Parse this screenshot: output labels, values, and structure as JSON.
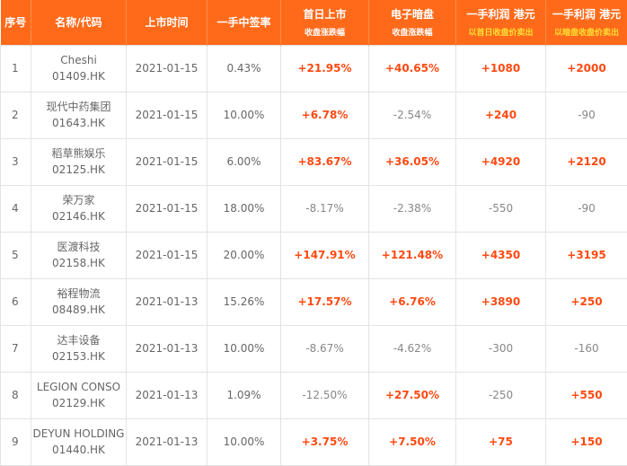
{
  "colors": {
    "header_bg": "#ff6a1a",
    "positive": "#ff4a12",
    "negative": "#888888",
    "subheader_yellow": "#ffe033"
  },
  "header": {
    "idx": "序号",
    "name": "名称/代码",
    "date": "上市时间",
    "rate": "一手中签率",
    "first_day": "首日上市",
    "first_day_sub": "收盘涨跌幅",
    "grey": "电子暗盘",
    "grey_sub": "收盘涨跌幅",
    "profit1": "一手利润 港元",
    "profit1_sub": "以首日收盘价卖出",
    "profit2": "一手利润 港元",
    "profit2_sub": "以暗盘收盘价卖出"
  },
  "rows": [
    {
      "idx": "1",
      "name": "Cheshi",
      "code": "01409.HK",
      "date": "2021-01-15",
      "rate": "0.43%",
      "first_day": "+21.95%",
      "grey": "+40.65%",
      "profit1": "+1080",
      "profit2": "+2000"
    },
    {
      "idx": "2",
      "name": "现代中药集团",
      "code": "01643.HK",
      "date": "2021-01-15",
      "rate": "10.00%",
      "first_day": "+6.78%",
      "grey": "-2.54%",
      "profit1": "+240",
      "profit2": "-90"
    },
    {
      "idx": "3",
      "name": "稻草熊娱乐",
      "code": "02125.HK",
      "date": "2021-01-15",
      "rate": "6.00%",
      "first_day": "+83.67%",
      "grey": "+36.05%",
      "profit1": "+4920",
      "profit2": "+2120"
    },
    {
      "idx": "4",
      "name": "荣万家",
      "code": "02146.HK",
      "date": "2021-01-15",
      "rate": "18.00%",
      "first_day": "-8.17%",
      "grey": "-2.38%",
      "profit1": "-550",
      "profit2": "-90"
    },
    {
      "idx": "5",
      "name": "医渡科技",
      "code": "02158.HK",
      "date": "2021-01-15",
      "rate": "20.00%",
      "first_day": "+147.91%",
      "grey": "+121.48%",
      "profit1": "+4350",
      "profit2": "+3195"
    },
    {
      "idx": "6",
      "name": "裕程物流",
      "code": "08489.HK",
      "date": "2021-01-13",
      "rate": "15.26%",
      "first_day": "+17.57%",
      "grey": "+6.76%",
      "profit1": "+3890",
      "profit2": "+250"
    },
    {
      "idx": "7",
      "name": "达丰设备",
      "code": "02153.HK",
      "date": "2021-01-13",
      "rate": "10.00%",
      "first_day": "-8.67%",
      "grey": "-4.62%",
      "profit1": "-300",
      "profit2": "-160"
    },
    {
      "idx": "8",
      "name": "LEGION CONSO",
      "code": "02129.HK",
      "date": "2021-01-13",
      "rate": "1.09%",
      "first_day": "-12.50%",
      "grey": "+27.50%",
      "profit1": "-250",
      "profit2": "+550"
    },
    {
      "idx": "9",
      "name": "DEYUN HOLDING",
      "code": "01440.HK",
      "date": "2021-01-13",
      "rate": "10.00%",
      "first_day": "+3.75%",
      "grey": "+7.50%",
      "profit1": "+75",
      "profit2": "+150"
    }
  ]
}
